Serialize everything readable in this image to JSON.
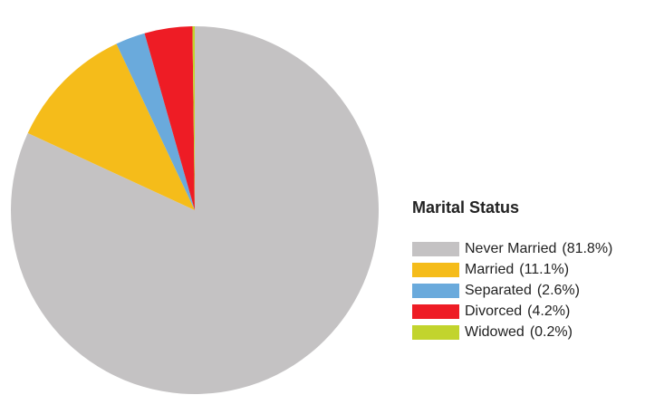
{
  "chart_data": {
    "type": "pie",
    "legend_title": "Marital Status",
    "categories": [
      "Never Married",
      "Married",
      "Separated",
      "Divorced",
      "Widowed"
    ],
    "values": [
      81.8,
      11.1,
      2.6,
      4.2,
      0.2
    ],
    "value_labels": [
      "(81.8%)",
      "(11.1%)",
      "(2.6%)",
      "(4.2%)",
      "(0.2%)"
    ],
    "colors": [
      "#c4c2c3",
      "#f5bc1a",
      "#6aaadc",
      "#ee1c25",
      "#c2d42d"
    ],
    "legend": "right"
  }
}
